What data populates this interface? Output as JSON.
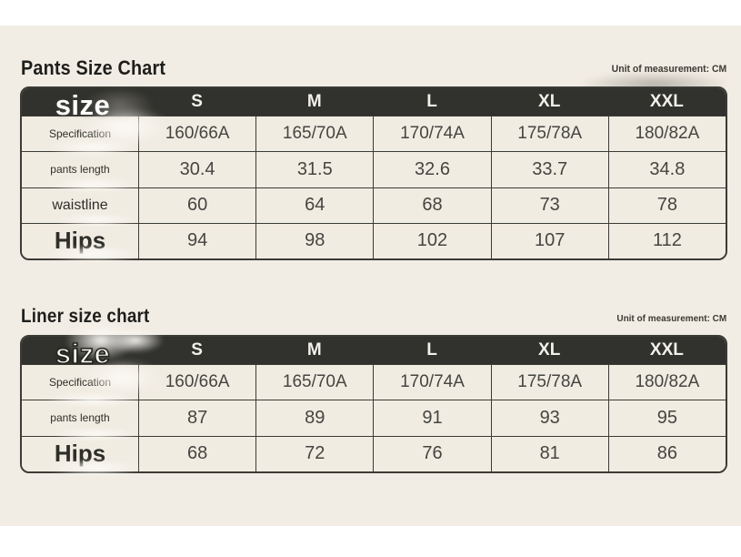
{
  "colors": {
    "panel_background": "#f2ede4",
    "header_background": "#31312d",
    "cell_background": "#f1ece2",
    "border": "#3b3b36",
    "title_text": "#1e1e1b",
    "cell_text": "#454540",
    "header_text": "#f2f0ea"
  },
  "tables": [
    {
      "title": "Pants Size Chart",
      "unit": "Unit of measurement: CM",
      "corner_label": "size",
      "columns": [
        "S",
        "M",
        "L",
        "XL",
        "XXL"
      ],
      "rows": [
        {
          "label": "Specification",
          "cells": [
            "160/66A",
            "165/70A",
            "170/74A",
            "175/78A",
            "180/82A"
          ]
        },
        {
          "label": "pants length",
          "cells": [
            "30.4",
            "31.5",
            "32.6",
            "33.7",
            "34.8"
          ]
        },
        {
          "label": "waistline",
          "cells": [
            "60",
            "64",
            "68",
            "73",
            "78"
          ]
        },
        {
          "label": "Hips",
          "cells": [
            "94",
            "98",
            "102",
            "107",
            "112"
          ]
        }
      ]
    },
    {
      "title": "Liner size chart",
      "unit": "Unit of measurement: CM",
      "corner_label": "size",
      "columns": [
        "S",
        "M",
        "L",
        "XL",
        "XXL"
      ],
      "rows": [
        {
          "label": "Specification",
          "cells": [
            "160/66A",
            "165/70A",
            "170/74A",
            "175/78A",
            "180/82A"
          ]
        },
        {
          "label": "pants length",
          "cells": [
            "87",
            "89",
            "91",
            "93",
            "95"
          ]
        },
        {
          "label": "Hips",
          "cells": [
            "68",
            "72",
            "76",
            "81",
            "86"
          ]
        }
      ]
    }
  ]
}
